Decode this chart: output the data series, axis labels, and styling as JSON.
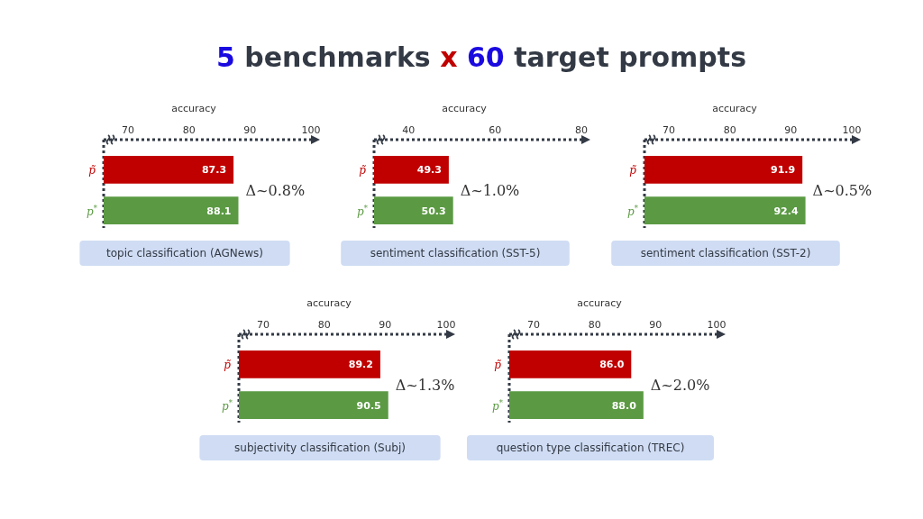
{
  "chart_data": [
    {
      "type": "bar",
      "orientation": "horizontal",
      "title": "5 benchmarks x 60 target prompts",
      "subtitle": "topic classification (AGNews)",
      "xlabel": "accuracy",
      "categories": [
        "p̃",
        "p$^{*}$"
      ],
      "values": [
        87.3,
        88.1
      ],
      "colors": [
        "#c00000",
        "#5b9a43"
      ],
      "xlim": [
        66,
        100
      ],
      "xticks": [
        70,
        80,
        90,
        100
      ],
      "data_labels": true,
      "annotations": [
        "Δ~0.8%"
      ]
    },
    {
      "type": "bar",
      "orientation": "horizontal",
      "subtitle": "sentiment classification (SST-5)",
      "xlabel": "accuracy",
      "categories": [
        "p̃",
        "p$^{*}$"
      ],
      "values": [
        49.3,
        50.3
      ],
      "colors": [
        "#c00000",
        "#5b9a43"
      ],
      "xlim": [
        32,
        80
      ],
      "xticks": [
        40,
        60,
        80
      ],
      "data_labels": true,
      "annotations": [
        "Δ~1.0%"
      ]
    },
    {
      "type": "bar",
      "orientation": "horizontal",
      "subtitle": "sentiment classification (SST-2)",
      "xlabel": "accuracy",
      "categories": [
        "p̃",
        "p$^{*}$"
      ],
      "values": [
        91.9,
        92.4
      ],
      "colors": [
        "#c00000",
        "#5b9a43"
      ],
      "xlim": [
        66,
        100
      ],
      "xticks": [
        70,
        80,
        90,
        100
      ],
      "data_labels": true,
      "annotations": [
        "Δ~0.5%"
      ]
    },
    {
      "type": "bar",
      "orientation": "horizontal",
      "subtitle": "subjectivity classification (Subj)",
      "xlabel": "accuracy",
      "categories": [
        "p̃",
        "p$^{*}$"
      ],
      "values": [
        89.2,
        90.5
      ],
      "colors": [
        "#c00000",
        "#5b9a43"
      ],
      "xlim": [
        66,
        100
      ],
      "xticks": [
        70,
        80,
        90,
        100
      ],
      "data_labels": true,
      "annotations": [
        "Δ~1.3%"
      ]
    },
    {
      "type": "bar",
      "orientation": "horizontal",
      "subtitle": "question type classification (TREC)",
      "xlabel": "accuracy",
      "categories": [
        "p̃",
        "p$^{*}$"
      ],
      "values": [
        86.0,
        88.0
      ],
      "colors": [
        "#c00000",
        "#5b9a43"
      ],
      "xlim": [
        66,
        100
      ],
      "xticks": [
        70,
        80,
        90,
        100
      ],
      "data_labels": true,
      "value_labels": [
        "86.0",
        "88.0"
      ],
      "annotations": [
        "Δ~2.0%"
      ]
    }
  ]
}
